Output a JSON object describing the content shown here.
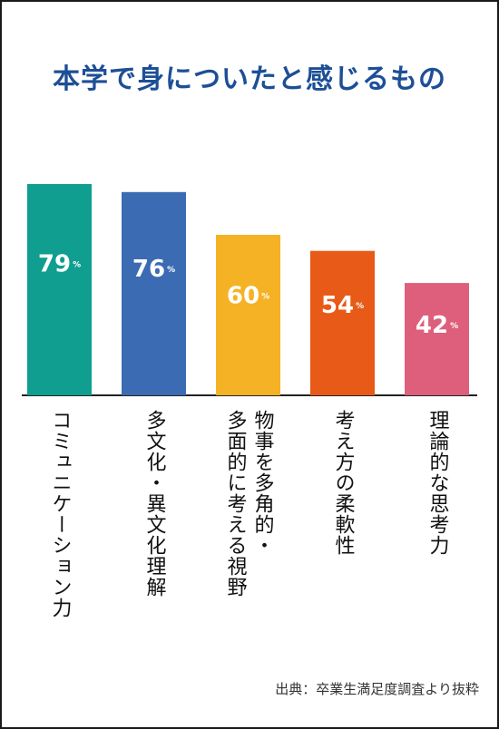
{
  "title": "本学で身についたと感じるもの",
  "source": "出典：卒業生満足度調査より抜粋",
  "colors": {
    "title": "#1d4f96",
    "bars": [
      "#0f9e8f",
      "#3b6bb3",
      "#f5b225",
      "#e85a17",
      "#de5f7b"
    ]
  },
  "chart_data": {
    "type": "bar",
    "title": "本学で身についたと感じるもの",
    "categories": [
      "コミュニケーション力",
      "多文化・異文化理解",
      "物事を多角的・多面的に考える視野",
      "考え方の柔軟性",
      "理論的な思考力"
    ],
    "category_lines": [
      [
        "コミュニケーション力"
      ],
      [
        "多文化・異文化理解"
      ],
      [
        "物事を多角的・",
        "多面的に考える視野"
      ],
      [
        "考え方の柔軟性"
      ],
      [
        "理論的な思考力"
      ]
    ],
    "values": [
      79,
      76,
      60,
      54,
      42
    ],
    "value_unit": "%",
    "ylim": [
      0,
      100
    ],
    "xlabel": "",
    "ylabel": "",
    "grid": false,
    "legend": "none"
  }
}
